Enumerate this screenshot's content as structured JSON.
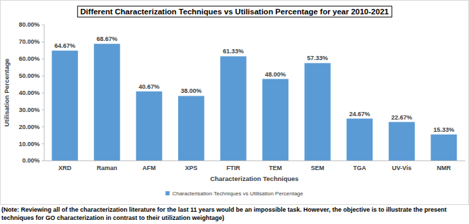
{
  "chart_data": {
    "type": "bar",
    "title": "Different Characterization Techniques vs Utilisation Percentage for year 2010-2021",
    "x_label": "Characterization Techniques",
    "y_label": "Utilisation Percentage",
    "categories": [
      "XRD",
      "Raman",
      "AFM",
      "XPS",
      "FTIR",
      "TEM",
      "SEM",
      "TGA",
      "UV-Vis",
      "NMR"
    ],
    "series": [
      {
        "name": "Characterisation Techniques vs Utilisation Percentage",
        "color": "#5b9bd5",
        "values": [
          64.67,
          68.67,
          40.67,
          38.0,
          61.33,
          48.0,
          57.33,
          24.67,
          22.67,
          15.33
        ],
        "value_labels": [
          "64.67%",
          "68.67%",
          "40.67%",
          "38.00%",
          "61.33%",
          "48.00%",
          "57.33%",
          "24.67%",
          "22.67%",
          "15.33%"
        ]
      }
    ],
    "ylim": [
      0,
      80
    ],
    "yticks": [
      {
        "value": 0,
        "label": "0.00%"
      },
      {
        "value": 10,
        "label": "10.00%"
      },
      {
        "value": 20,
        "label": "20.00%"
      },
      {
        "value": 30,
        "label": "30.00%"
      },
      {
        "value": 40,
        "label": "40.00%"
      },
      {
        "value": 50,
        "label": "50.00%"
      },
      {
        "value": 60,
        "label": "60.00%"
      },
      {
        "value": 70,
        "label": "70.00%"
      },
      {
        "value": 80,
        "label": "80.00%"
      }
    ],
    "grid": false,
    "data_labels": true,
    "legend": "bottom",
    "annotations": [
      "(Note: Reviewing all of the characterization literature for the last 11 years would be an impossible task. However, the objective is to illustrate the present techniques for GO characterization in contrast to their utilization weightage)"
    ]
  }
}
